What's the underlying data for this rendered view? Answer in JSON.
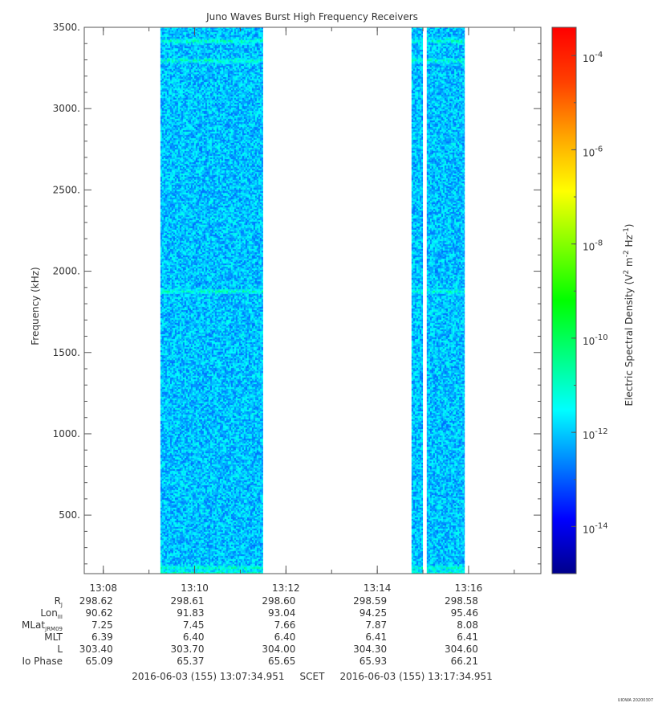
{
  "chart_data": {
    "type": "heatmap",
    "title": "Juno Waves Burst High Frequency Receivers",
    "ylabel": "Frequency (kHz)",
    "y_ticks": [
      "3500.",
      "3000.",
      "2500.",
      "2000.",
      "1500.",
      "1000.",
      "500."
    ],
    "y_tick_values": [
      3500,
      3000,
      2500,
      2000,
      1500,
      1000,
      500
    ],
    "ylim": [
      140,
      3500
    ],
    "x_ticks": [
      "13:08",
      "13:10",
      "13:12",
      "13:14",
      "13:16"
    ],
    "x_tick_values": [
      "13:08",
      "13:10",
      "13:12",
      "13:14",
      "13:16"
    ],
    "xlim": [
      "13:07:34.951",
      "13:17:34.951"
    ],
    "grid": false,
    "data_segments": [
      {
        "start": "13:09:15",
        "end": "13:11:30"
      },
      {
        "start": "13:14:45",
        "end": "13:15:00"
      },
      {
        "start": "13:15:05",
        "end": "13:15:55"
      }
    ],
    "emission_bands_khz": [
      150,
      180,
      1880,
      3300,
      3420
    ],
    "background_level": "1e-12",
    "colorbar": {
      "label": "Electric Spectral Density (V",
      "label_sup1": "2",
      "label_mid": " m",
      "label_sup2": "-2",
      "label_mid2": " Hz",
      "label_sup3": "-1",
      "label_end": ")",
      "scale": "log",
      "range": [
        "1e-15",
        "1e-3.4"
      ],
      "ticks": [
        {
          "base": "10",
          "exp": "-4",
          "value": -4
        },
        {
          "base": "10",
          "exp": "-6",
          "value": -6
        },
        {
          "base": "10",
          "exp": "-8",
          "value": -8
        },
        {
          "base": "10",
          "exp": "-10",
          "value": -10
        },
        {
          "base": "10",
          "exp": "-12",
          "value": -12
        },
        {
          "base": "10",
          "exp": "-14",
          "value": -14
        }
      ],
      "colors": [
        "#00008b",
        "#0000ff",
        "#0080ff",
        "#00ffff",
        "#00ff80",
        "#00ff00",
        "#80ff00",
        "#ffff00",
        "#ffa500",
        "#ff4000",
        "#ff0000"
      ]
    },
    "ephemeris": {
      "rows": [
        {
          "label": "R",
          "sub": "J",
          "values": [
            "298.62",
            "298.61",
            "298.60",
            "298.59",
            "298.58"
          ]
        },
        {
          "label": "Lon",
          "sub": "III",
          "values": [
            "90.62",
            "91.83",
            "93.04",
            "94.25",
            "95.46"
          ]
        },
        {
          "label": "MLat",
          "sub": "JRM09",
          "values": [
            "7.25",
            "7.45",
            "7.66",
            "7.87",
            "8.08"
          ]
        },
        {
          "label": "MLT",
          "sub": "",
          "values": [
            "6.39",
            "6.40",
            "6.40",
            "6.41",
            "6.41"
          ]
        },
        {
          "label": "L",
          "sub": "",
          "values": [
            "303.40",
            "303.70",
            "304.00",
            "304.30",
            "304.60"
          ]
        },
        {
          "label": "Io Phase",
          "sub": "",
          "values": [
            "65.09",
            "65.37",
            "65.65",
            "65.93",
            "66.21"
          ]
        }
      ]
    },
    "time_range_text": "2016-06-03 (155) 13:07:34.951     SCET     2016-06-03 (155) 13:17:34.951",
    "stamp": "UIOWA 20200307"
  }
}
